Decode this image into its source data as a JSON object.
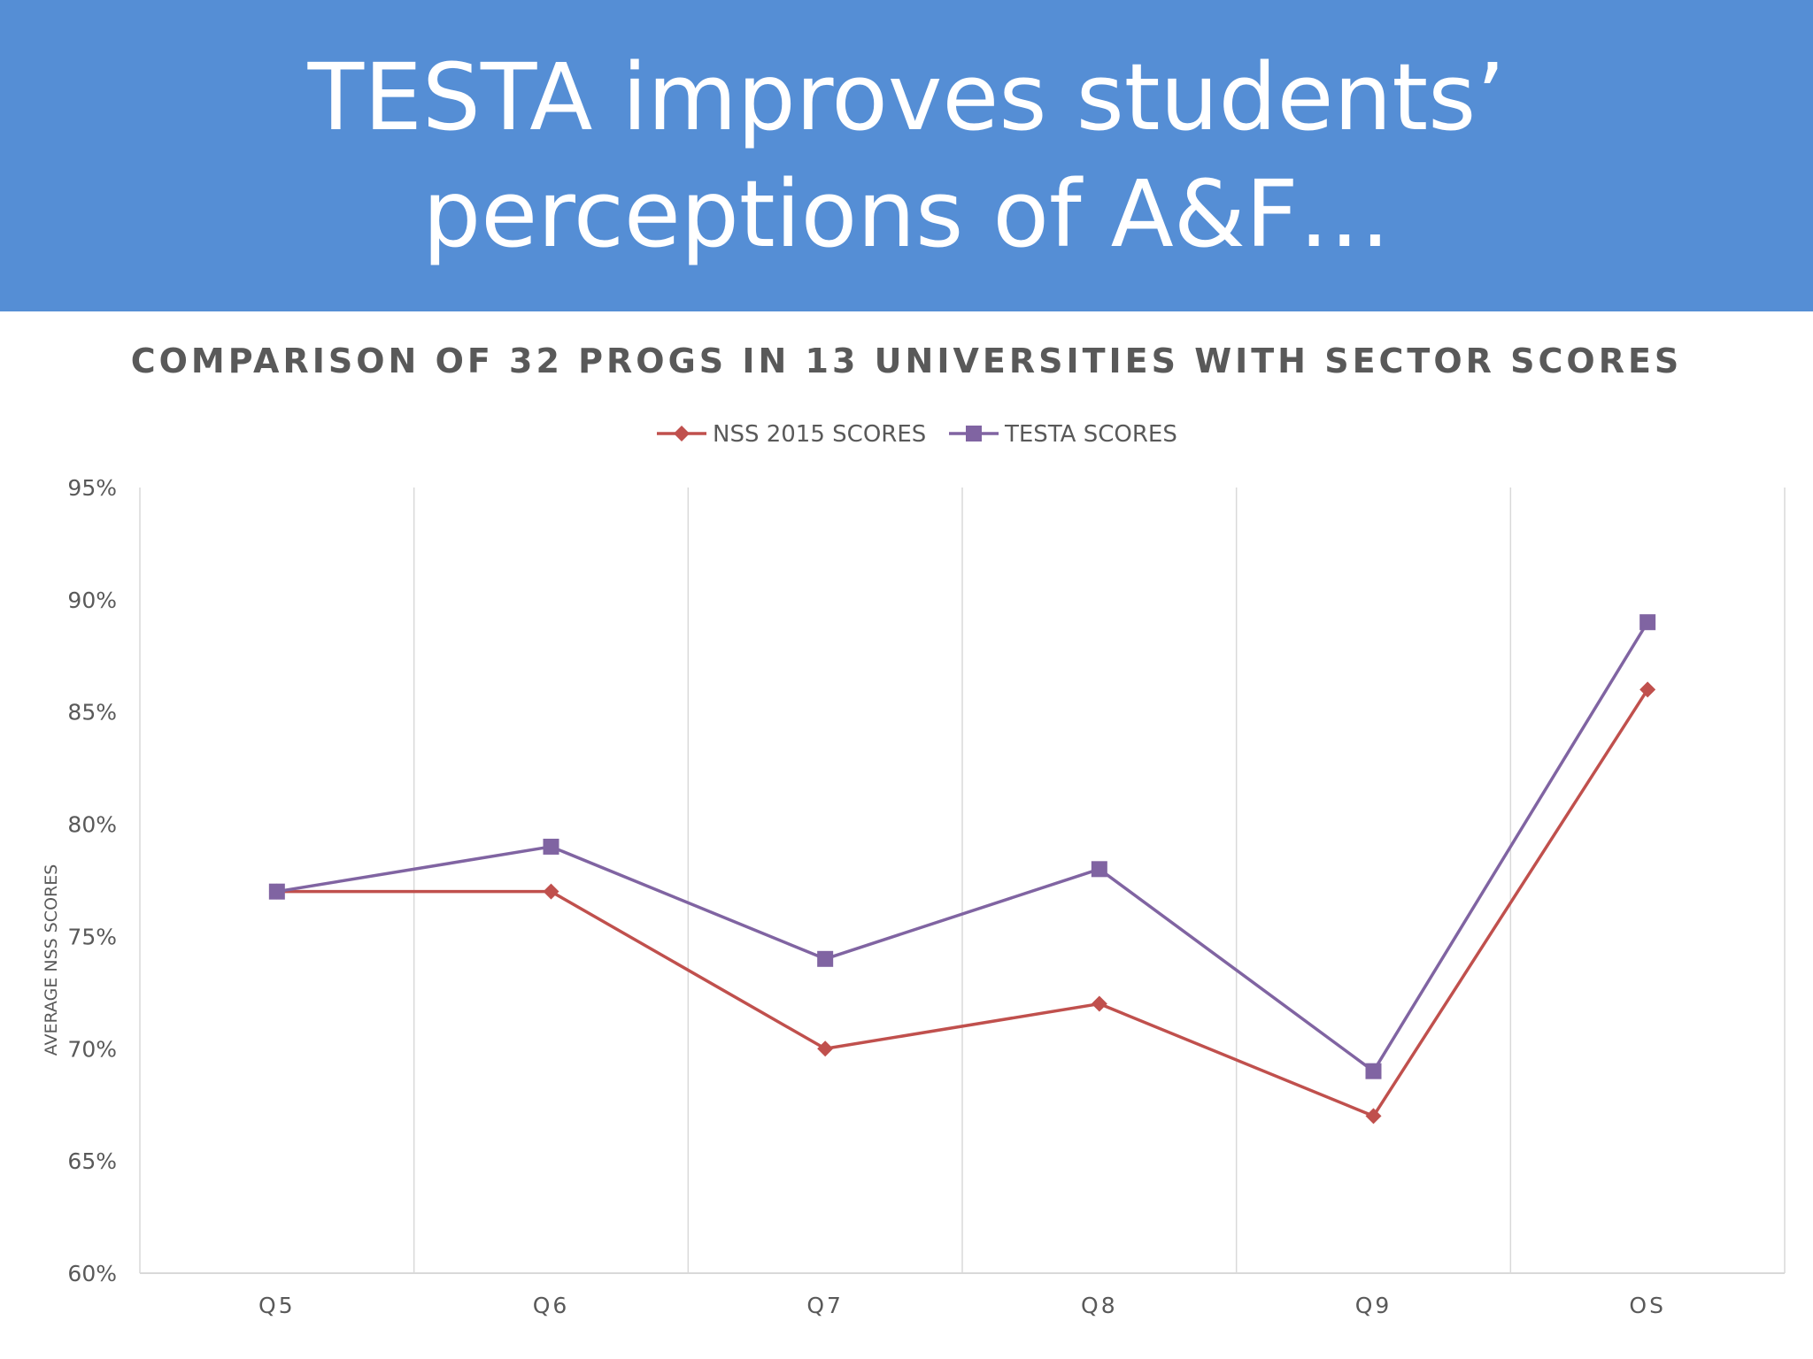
{
  "slide": {
    "title": "TESTA improves students’ perceptions of A&F…"
  },
  "chart_data": {
    "type": "line",
    "title": "COMPARISON OF 32 PROGS IN 13 UNIVERSITIES WITH SECTOR SCORES",
    "xlabel": "",
    "ylabel": "AVERAGE NSS SCORES",
    "categories": [
      "Q5",
      "Q6",
      "Q7",
      "Q8",
      "Q9",
      "OS"
    ],
    "ylim": [
      60,
      95
    ],
    "yticks": [
      "60%",
      "65%",
      "70%",
      "75%",
      "80%",
      "85%",
      "90%",
      "95%"
    ],
    "ystep": 5,
    "grid": "vertical",
    "legend_position": "top-center",
    "series": [
      {
        "name": "NSS 2015 SCORES",
        "values": [
          77,
          77,
          70,
          72,
          67,
          86
        ],
        "color": "#c0504d",
        "marker": "diamond"
      },
      {
        "name": "TESTA SCORES",
        "values": [
          77,
          79,
          74,
          78,
          69,
          89
        ],
        "color": "#8064a2",
        "marker": "square"
      }
    ]
  }
}
